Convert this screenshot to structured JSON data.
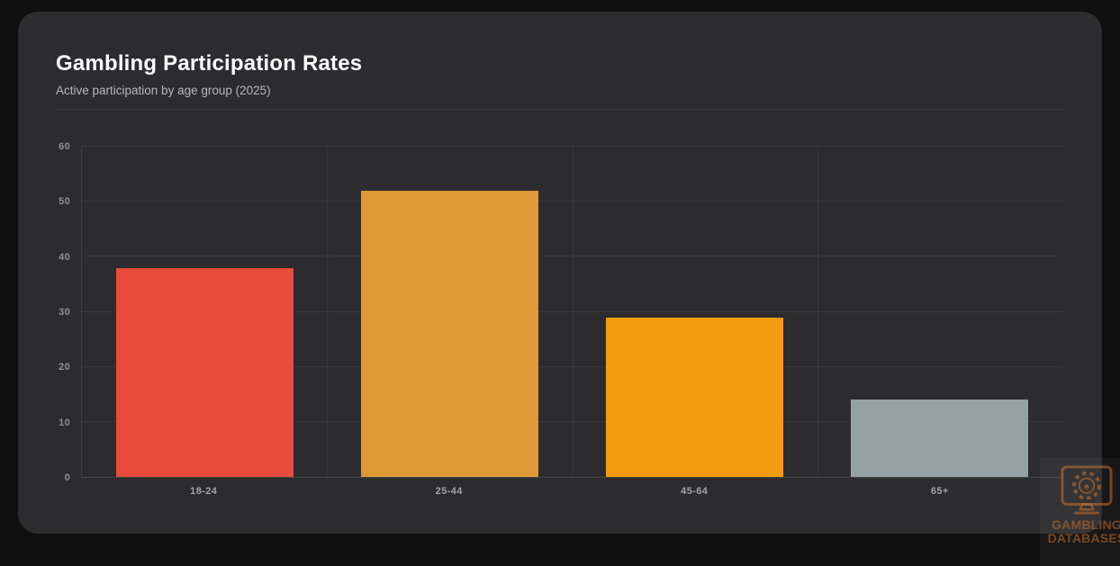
{
  "header": {
    "title": "Gambling Participation Rates",
    "subtitle": "Active participation by age group (2025)"
  },
  "chart_data": {
    "type": "bar",
    "categories": [
      "18-24",
      "25-44",
      "45-64",
      "65+"
    ],
    "values": [
      38,
      52,
      29,
      14
    ],
    "bar_colors": [
      "#e74c3c",
      "#de9934",
      "#f39c12",
      "#95a2a3"
    ],
    "title": "Gambling Participation Rates",
    "subtitle": "Active participation by age group (2025)",
    "xlabel": "",
    "ylabel": "",
    "ylim": [
      0,
      60
    ],
    "yticks": [
      0,
      10,
      20,
      30,
      40,
      50,
      60
    ],
    "grid": true,
    "legend": false
  },
  "watermark": {
    "line1": "GAMBLING",
    "line2": "DATABASES",
    "icon_color": "#b2631f"
  },
  "theme": {
    "page_bg": "#0f0f10",
    "card_bg": "#2c2c2e",
    "title_color": "#fcfcfc",
    "subtitle_color": "#b8b8b8",
    "tick_color": "#8f8f8f"
  }
}
